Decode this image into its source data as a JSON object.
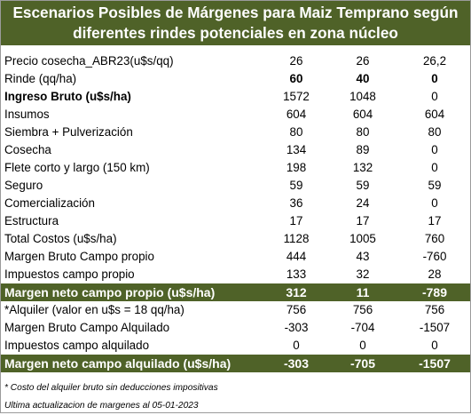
{
  "title": {
    "line1": "Escenarios  Posibles de Márgenes para Maiz Temprano según",
    "line2": "diferentes rindes potenciales en zona núcleo"
  },
  "rows": [
    {
      "label": "Precio cosecha_ABR23(u$s/qq)",
      "v1": "26",
      "v2": "26",
      "v3": "26,2"
    },
    {
      "label": "Rinde (qq/ha)",
      "v1": "60",
      "v2": "40",
      "v3": "0"
    },
    {
      "label": "Ingreso Bruto (u$s/ha)",
      "v1": "1572",
      "v2": "1048",
      "v3": "0"
    },
    {
      "label": "Insumos",
      "v1": "604",
      "v2": "604",
      "v3": "604"
    },
    {
      "label": "Siembra + Pulverización",
      "v1": "80",
      "v2": "80",
      "v3": "80"
    },
    {
      "label": "Cosecha",
      "v1": "134",
      "v2": "89",
      "v3": "0"
    },
    {
      "label": "Flete corto y largo (150 km)",
      "v1": "198",
      "v2": "132",
      "v3": "0"
    },
    {
      "label": "Seguro",
      "v1": "59",
      "v2": "59",
      "v3": "59"
    },
    {
      "label": "Comercialización",
      "v1": "36",
      "v2": "24",
      "v3": "0"
    },
    {
      "label": "Estructura",
      "v1": "17",
      "v2": "17",
      "v3": "17"
    },
    {
      "label": "Total Costos (u$s/ha)",
      "v1": "1128",
      "v2": "1005",
      "v3": "760"
    },
    {
      "label": "Margen Bruto Campo propio",
      "v1": "444",
      "v2": "43",
      "v3": "-760"
    },
    {
      "label": "Impuestos  campo propio",
      "v1": "133",
      "v2": "32",
      "v3": "28"
    },
    {
      "label": "Margen neto campo propio (u$s/ha)",
      "v1": "312",
      "v2": "11",
      "v3": "-789"
    },
    {
      "label": "*Alquiler (valor en u$s = 18 qq/ha)",
      "v1": "756",
      "v2": "756",
      "v3": "756"
    },
    {
      "label": "Margen Bruto Campo Alquilado",
      "v1": "-303",
      "v2": "-704",
      "v3": "-1507"
    },
    {
      "label": "Impuestos campo alquilado",
      "v1": "0",
      "v2": "0",
      "v3": "0"
    },
    {
      "label": "Margen neto campo alquilado (u$s/ha)",
      "v1": "-303",
      "v2": "-705",
      "v3": "-1507"
    }
  ],
  "notes": {
    "footnote": "* Costo del alquiler bruto sin deducciones impositivas",
    "updated": "Ultima actualizacion de margenes al 05-01-2023"
  },
  "colors": {
    "header_bg": "#4f6228",
    "header_text": "#ffffff"
  }
}
